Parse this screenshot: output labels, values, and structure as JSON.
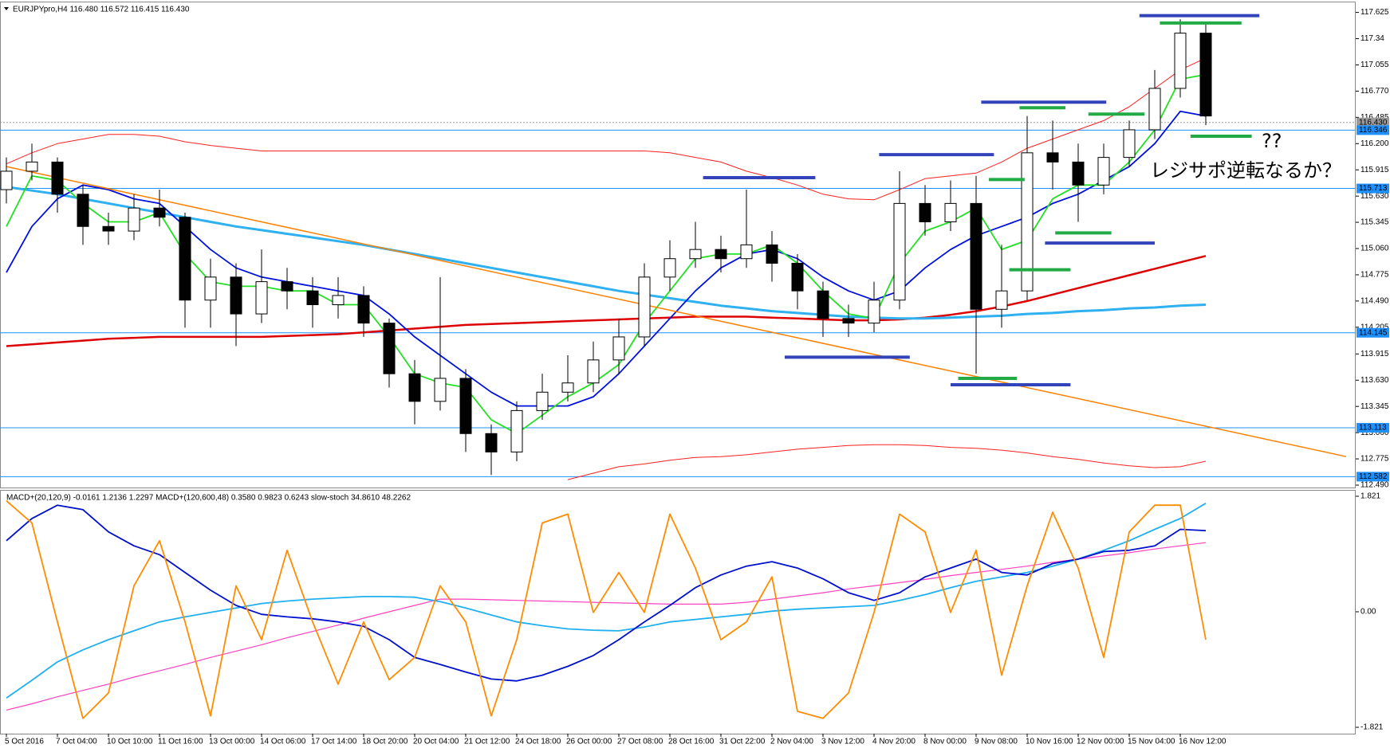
{
  "chart_data": [
    {
      "type": "candlestick",
      "title": "EURJPYpro,H4 116.480 116.572 116.415 116.430",
      "open": [
        115.7,
        115.9,
        116.0,
        115.65,
        115.3,
        115.25,
        115.5,
        115.4,
        114.5,
        114.75,
        114.35,
        114.7,
        114.6,
        114.45,
        114.55,
        114.25,
        113.7,
        113.4,
        113.65,
        113.05,
        112.85,
        113.3,
        113.5,
        113.6,
        113.85,
        114.1,
        114.75,
        114.95,
        115.05,
        114.95,
        115.1,
        114.9,
        114.6,
        114.3,
        114.25,
        114.5,
        115.55,
        115.35,
        115.55,
        114.4,
        114.6,
        116.1,
        116.0,
        115.75,
        116.05,
        116.35,
        116.8,
        117.4
      ],
      "high": [
        116.05,
        116.2,
        116.05,
        115.75,
        115.45,
        115.65,
        115.7,
        115.45,
        114.95,
        114.9,
        115.05,
        114.85,
        114.75,
        114.75,
        114.65,
        114.3,
        113.85,
        114.75,
        113.75,
        113.15,
        113.4,
        113.7,
        113.9,
        114.05,
        114.3,
        114.9,
        115.15,
        115.35,
        115.2,
        115.7,
        115.25,
        115.0,
        114.7,
        114.45,
        114.7,
        115.9,
        115.75,
        115.8,
        115.85,
        115.1,
        116.5,
        116.45,
        116.2,
        116.2,
        116.45,
        117.0,
        117.55,
        117.5
      ],
      "low": [
        115.55,
        115.8,
        115.45,
        115.1,
        115.1,
        115.15,
        115.3,
        114.2,
        114.2,
        114.0,
        114.25,
        114.4,
        114.2,
        114.3,
        114.1,
        113.55,
        113.15,
        113.3,
        112.85,
        112.6,
        112.75,
        113.2,
        113.4,
        113.5,
        113.7,
        114.0,
        114.6,
        114.85,
        114.8,
        114.85,
        114.7,
        114.4,
        114.1,
        114.1,
        114.15,
        114.4,
        115.2,
        115.25,
        113.7,
        114.2,
        114.5,
        115.7,
        115.35,
        115.65,
        115.95,
        116.25,
        116.7,
        116.4
      ],
      "close": [
        115.9,
        116.0,
        115.65,
        115.3,
        115.25,
        115.5,
        115.4,
        114.5,
        114.75,
        114.35,
        114.7,
        114.6,
        114.45,
        114.55,
        114.25,
        113.7,
        113.4,
        113.65,
        113.05,
        112.85,
        113.3,
        113.5,
        113.6,
        113.85,
        114.1,
        114.75,
        114.95,
        115.05,
        114.95,
        115.1,
        114.9,
        114.6,
        114.3,
        114.25,
        114.5,
        115.55,
        115.35,
        115.55,
        114.4,
        114.6,
        116.1,
        116.0,
        115.75,
        116.05,
        116.35,
        116.8,
        117.4,
        116.5
      ],
      "up_color": "#ffffff",
      "down_color": "#000000",
      "ylim": [
        112.49,
        117.625
      ],
      "yticks": [
        117.625,
        117.34,
        117.055,
        {
          "value": 116.77,
          "label": "116.770"
        },
        116.485,
        {
          "value": 116.2,
          "label": "116.200"
        },
        115.915,
        {
          "value": 115.63,
          "label": "115.630"
        },
        115.345,
        {
          "value": 115.06,
          "label": "115.060"
        },
        114.775,
        {
          "value": 114.49,
          "label": "114.490"
        },
        114.205,
        113.915,
        {
          "value": 113.63,
          "label": "113.630"
        },
        113.345,
        {
          "value": 113.06,
          "label": "113.060"
        },
        112.775,
        {
          "value": 112.49,
          "label": "112.490"
        }
      ],
      "hlines": [
        {
          "value": 116.43,
          "label": "116.430"
        },
        116.346,
        115.713,
        114.145,
        113.113,
        112.582
      ],
      "hline_color": "#1e90ff",
      "lines": [
        {
          "color": "#ff2020",
          "values": [
            115.98,
            116.1,
            116.2,
            116.25,
            116.3,
            116.3,
            116.28,
            116.22,
            116.18,
            116.15,
            116.12,
            116.12,
            116.12,
            116.12,
            116.12,
            116.12,
            116.12,
            116.12,
            116.12,
            116.12,
            116.12,
            116.12,
            116.12,
            116.12,
            116.12,
            116.12,
            116.1,
            116.05,
            116.0,
            115.9,
            115.83,
            115.75,
            115.65,
            115.6,
            115.59,
            115.7,
            115.82,
            115.85,
            115.88,
            116.0,
            116.15,
            116.25,
            116.35,
            116.45,
            116.6,
            116.8,
            117.0,
            117.13
          ]
        },
        {
          "color": "#ff2020",
          "values": [
            null,
            null,
            null,
            null,
            null,
            null,
            null,
            null,
            null,
            null,
            null,
            null,
            null,
            null,
            null,
            null,
            null,
            null,
            null,
            null,
            null,
            null,
            112.55,
            112.62,
            112.69,
            112.72,
            112.76,
            112.79,
            112.8,
            112.82,
            112.85,
            112.88,
            112.9,
            112.92,
            112.93,
            112.93,
            112.92,
            112.9,
            112.89,
            112.87,
            112.84,
            112.8,
            112.77,
            112.73,
            112.7,
            112.68,
            112.69,
            112.75
          ]
        },
        {
          "color": "#dd0000",
          "values": [
            114.0,
            114.02,
            114.04,
            114.06,
            114.08,
            114.09,
            114.1,
            114.1,
            114.1,
            114.1,
            114.1,
            114.11,
            114.12,
            114.13,
            114.15,
            114.17,
            114.19,
            114.21,
            114.23,
            114.24,
            114.25,
            114.26,
            114.27,
            114.28,
            114.29,
            114.3,
            114.31,
            114.32,
            114.32,
            114.32,
            114.31,
            114.3,
            114.29,
            114.28,
            114.28,
            114.29,
            114.31,
            114.34,
            114.38,
            114.43,
            114.49,
            114.56,
            114.63,
            114.7,
            114.77,
            114.84,
            114.91,
            114.98
          ]
        },
        {
          "color": "#2fb0f0",
          "values": [
            115.73,
            115.69,
            115.65,
            115.6,
            115.55,
            115.5,
            115.45,
            115.4,
            115.35,
            115.3,
            115.26,
            115.22,
            115.18,
            115.14,
            115.1,
            115.05,
            115.0,
            114.95,
            114.9,
            114.85,
            114.8,
            114.75,
            114.7,
            114.65,
            114.6,
            114.56,
            114.52,
            114.48,
            114.44,
            114.41,
            114.38,
            114.36,
            114.34,
            114.32,
            114.31,
            114.3,
            114.3,
            114.31,
            114.32,
            114.33,
            114.35,
            114.36,
            114.38,
            114.39,
            114.41,
            114.42,
            114.44,
            114.45
          ]
        },
        {
          "color": "#0010dd",
          "values": [
            114.8,
            115.3,
            115.6,
            115.75,
            115.7,
            115.6,
            115.55,
            115.3,
            115.05,
            114.85,
            114.75,
            114.7,
            114.65,
            114.6,
            114.55,
            114.35,
            114.1,
            113.9,
            113.7,
            113.5,
            113.35,
            113.35,
            113.35,
            113.45,
            113.7,
            114.0,
            114.3,
            114.6,
            114.85,
            115.0,
            115.05,
            114.95,
            114.75,
            114.6,
            114.5,
            114.6,
            114.85,
            115.05,
            115.2,
            115.3,
            115.4,
            115.55,
            115.65,
            115.8,
            115.95,
            116.2,
            116.55,
            116.5
          ]
        },
        {
          "color": "#22e022",
          "values": [
            115.3,
            115.85,
            115.8,
            115.55,
            115.35,
            115.35,
            115.45,
            115.0,
            114.7,
            114.65,
            114.65,
            114.6,
            114.6,
            114.45,
            114.45,
            114.1,
            113.7,
            113.6,
            113.55,
            113.2,
            113.05,
            113.25,
            113.45,
            113.6,
            113.8,
            114.25,
            114.6,
            114.95,
            115.0,
            115.0,
            115.1,
            114.9,
            114.6,
            114.35,
            114.3,
            114.9,
            115.25,
            115.35,
            115.5,
            115.05,
            115.15,
            115.6,
            115.75,
            115.75,
            116.0,
            116.35,
            116.9,
            116.95
          ]
        }
      ],
      "trendline": {
        "color": "#ff8000",
        "x": [
          0,
          52.5
        ],
        "y": [
          115.95,
          112.8
        ]
      },
      "levels": [
        {
          "color": "#3344bb",
          "x": [
            27.3,
            31.7
          ],
          "y": 115.83
        },
        {
          "color": "#3344bb",
          "x": [
            34.2,
            38.7
          ],
          "y": 116.08
        },
        {
          "color": "#3344bb",
          "x": [
            38.2,
            43.1
          ],
          "y": 116.65
        },
        {
          "color": "#3344bb",
          "x": [
            44.4,
            49.1
          ],
          "y": 117.59
        },
        {
          "color": "#3344bb",
          "x": [
            30.5,
            35.4
          ],
          "y": 113.88
        },
        {
          "color": "#3344bb",
          "x": [
            37.0,
            41.7
          ],
          "y": 113.58
        },
        {
          "color": "#3344bb",
          "x": [
            40.7,
            45.0
          ],
          "y": 115.12
        },
        {
          "color": "#22aa44",
          "x": [
            45.2,
            48.4
          ],
          "y": 117.51
        },
        {
          "color": "#22aa44",
          "x": [
            39.7,
            41.5
          ],
          "y": 116.59
        },
        {
          "color": "#22aa44",
          "x": [
            42.4,
            44.6
          ],
          "y": 116.52
        },
        {
          "color": "#22aa44",
          "x": [
            38.5,
            39.9
          ],
          "y": 115.81
        },
        {
          "color": "#22aa44",
          "x": [
            41.1,
            43.3
          ],
          "y": 115.23
        },
        {
          "color": "#22aa44",
          "x": [
            39.3,
            41.7
          ],
          "y": 114.83
        },
        {
          "color": "#22aa44",
          "x": [
            37.3,
            39.6
          ],
          "y": 113.65
        },
        {
          "color": "#22aa44",
          "x": [
            46.4,
            48.8
          ],
          "y": 116.28
        }
      ],
      "annotations": [
        "??",
        "レジサポ逆転なるか？"
      ],
      "annotation_color": "#22aa44"
    },
    {
      "type": "line",
      "title": "MACD+(20,120,9) -0.0161 1.2136 1.2297 MACD+(120,600,48) 0.3580 0.9823 0.6243 slow-stoch 34.8610 48.2262",
      "ylim": [
        -1.821,
        1.821
      ],
      "yticks": [
        1.821,
        {
          "value": 0,
          "label": "0.00"
        },
        -1.821
      ],
      "series": [
        {
          "color": "#ff40c0",
          "values": [
            -1.55,
            -1.45,
            -1.34,
            -1.24,
            -1.14,
            -1.03,
            -0.93,
            -0.83,
            -0.72,
            -0.62,
            -0.52,
            -0.41,
            -0.31,
            -0.21,
            -0.1,
            0.0,
            0.1,
            0.2,
            0.2,
            0.19,
            0.18,
            0.17,
            0.16,
            0.15,
            0.14,
            0.13,
            0.12,
            0.12,
            0.12,
            0.15,
            0.2,
            0.25,
            0.3,
            0.36,
            0.41,
            0.46,
            0.51,
            0.57,
            0.62,
            0.67,
            0.72,
            0.78,
            0.83,
            0.88,
            0.93,
            0.99,
            1.04,
            1.09
          ]
        },
        {
          "color": "#20b0f0",
          "values": [
            -1.36,
            -1.08,
            -0.79,
            -0.6,
            -0.44,
            -0.3,
            -0.16,
            -0.08,
            -0.01,
            0.06,
            0.13,
            0.17,
            0.2,
            0.22,
            0.24,
            0.24,
            0.23,
            0.16,
            0.06,
            -0.05,
            -0.16,
            -0.22,
            -0.27,
            -0.29,
            -0.3,
            -0.24,
            -0.16,
            -0.12,
            -0.08,
            -0.04,
            0.01,
            0.04,
            0.06,
            0.08,
            0.1,
            0.18,
            0.27,
            0.38,
            0.48,
            0.55,
            0.62,
            0.72,
            0.83,
            0.97,
            1.12,
            1.3,
            1.47,
            1.71
          ]
        },
        {
          "color": "#0010cc",
          "values": [
            1.12,
            1.47,
            1.68,
            1.61,
            1.26,
            1.04,
            0.9,
            0.62,
            0.34,
            0.1,
            -0.04,
            -0.08,
            -0.11,
            -0.16,
            -0.23,
            -0.44,
            -0.72,
            -0.83,
            -0.95,
            -1.06,
            -1.09,
            -1.0,
            -0.86,
            -0.69,
            -0.44,
            -0.16,
            0.1,
            0.38,
            0.58,
            0.72,
            0.79,
            0.69,
            0.52,
            0.3,
            0.18,
            0.3,
            0.55,
            0.69,
            0.83,
            0.62,
            0.58,
            0.76,
            0.83,
            0.95,
            0.97,
            1.04,
            1.3,
            1.28
          ]
        },
        {
          "color": "#ff8c00",
          "values": [
            1.75,
            1.4,
            -0.16,
            -1.68,
            -1.28,
            0.41,
            1.12,
            -0.16,
            -1.64,
            0.41,
            -0.44,
            0.97,
            -0.16,
            -1.14,
            -0.16,
            -1.07,
            -0.72,
            0.41,
            -0.16,
            -1.64,
            -0.44,
            1.4,
            1.54,
            -0.01,
            0.62,
            -0.01,
            1.54,
            0.69,
            -0.44,
            -0.16,
            0.55,
            -1.57,
            -1.68,
            -1.28,
            -0.01,
            1.54,
            1.26,
            -0.01,
            0.97,
            -1.0,
            0.41,
            1.57,
            0.69,
            -0.72,
            1.26,
            1.68,
            1.68,
            -0.44
          ]
        }
      ],
      "x_labels": [
        "5 Oct 2016",
        "7 Oct 04:00",
        "10 Oct 10:00",
        "11 Oct 16:00",
        "13 Oct 00:00",
        "14 Oct 06:00",
        "17 Oct 14:00",
        "18 Oct 20:00",
        "20 Oct 04:00",
        "21 Oct 12:00",
        "24 Oct 18:00",
        "26 Oct 00:00",
        "27 Oct 08:00",
        "28 Oct 16:00",
        "31 Oct 22:00",
        "2 Nov 04:00",
        "3 Nov 12:00",
        "4 Nov 20:00",
        "8 Nov 00:00",
        "9 Nov 08:00",
        "10 Nov 16:00",
        "12 Nov 00:00",
        "15 Nov 04:00",
        "16 Nov 12:00"
      ]
    }
  ]
}
